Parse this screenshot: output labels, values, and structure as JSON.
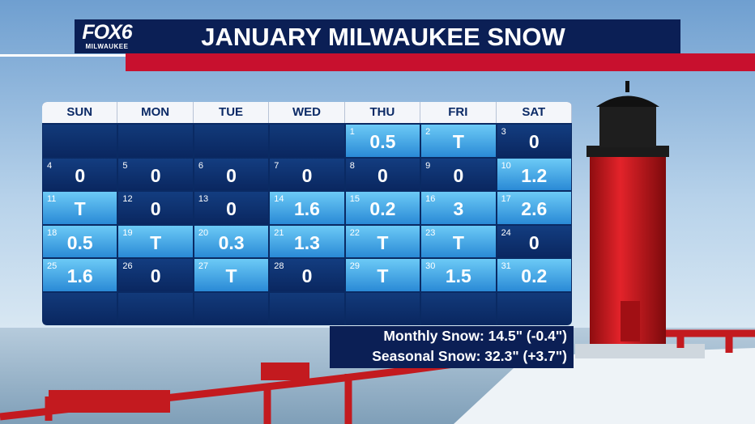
{
  "header": {
    "logo": "FOX6",
    "logo_city": "MILWAUKEE",
    "title": "JANUARY MILWAUKEE SNOW"
  },
  "calendar": {
    "weekdays": [
      "SUN",
      "MON",
      "TUE",
      "WED",
      "THU",
      "FRI",
      "SAT"
    ],
    "weeks": [
      [
        null,
        null,
        null,
        null,
        {
          "day": 1,
          "value": 0.5
        },
        {
          "day": 2,
          "value": "T"
        },
        {
          "day": 3,
          "value": 0
        }
      ],
      [
        {
          "day": 4,
          "value": 0
        },
        {
          "day": 5,
          "value": 0
        },
        {
          "day": 6,
          "value": 0
        },
        {
          "day": 7,
          "value": 0
        },
        {
          "day": 8,
          "value": 0
        },
        {
          "day": 9,
          "value": 0
        },
        {
          "day": 10,
          "value": 1.2
        }
      ],
      [
        {
          "day": 11,
          "value": "T"
        },
        {
          "day": 12,
          "value": 0
        },
        {
          "day": 13,
          "value": 0
        },
        {
          "day": 14,
          "value": 1.6
        },
        {
          "day": 15,
          "value": 0.2
        },
        {
          "day": 16,
          "value": 3
        },
        {
          "day": 17,
          "value": 2.6
        }
      ],
      [
        {
          "day": 18,
          "value": 0.5
        },
        {
          "day": 19,
          "value": "T"
        },
        {
          "day": 20,
          "value": 0.3
        },
        {
          "day": 21,
          "value": 1.3
        },
        {
          "day": 22,
          "value": "T"
        },
        {
          "day": 23,
          "value": "T"
        },
        {
          "day": 24,
          "value": 0
        }
      ],
      [
        {
          "day": 25,
          "value": 1.6
        },
        {
          "day": 26,
          "value": 0
        },
        {
          "day": 27,
          "value": "T"
        },
        {
          "day": 28,
          "value": 0
        },
        {
          "day": 29,
          "value": "T"
        },
        {
          "day": 30,
          "value": 1.5
        },
        {
          "day": 31,
          "value": 0.2
        }
      ],
      [
        null,
        null,
        null,
        null,
        null,
        null,
        null
      ]
    ]
  },
  "summary": {
    "monthly": "Monthly Snow: 14.5\" (-0.4\")",
    "seasonal": "Seasonal Snow: 32.3\" (+3.7\")"
  }
}
